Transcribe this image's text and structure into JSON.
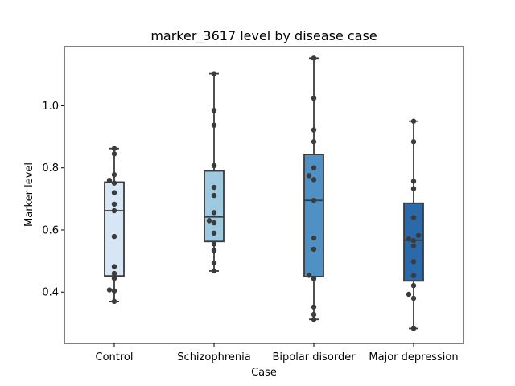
{
  "chart_data": {
    "type": "box",
    "title": "marker_3617 level by disease case",
    "xlabel": "Case",
    "ylabel": "Marker level",
    "ylim": [
      0.235,
      1.19
    ],
    "yticks": [
      0.4,
      0.6,
      0.8,
      1.0
    ],
    "ytick_labels": [
      "0.4",
      "0.6",
      "0.8",
      "1.0"
    ],
    "grid": false,
    "categories": [
      "Control",
      "Schizophrenia",
      "Bipolar disorder",
      "Major depression"
    ],
    "box_colors": [
      "#d6e6f4",
      "#9ecae1",
      "#4f90c5",
      "#2b6aaa"
    ],
    "boxes": [
      {
        "name": "Control",
        "whisker_low": 0.37,
        "q1": 0.452,
        "median": 0.662,
        "q3": 0.754,
        "whisker_high": 0.862
      },
      {
        "name": "Schizophrenia",
        "whisker_low": 0.468,
        "q1": 0.563,
        "median": 0.642,
        "q3": 0.79,
        "whisker_high": 1.103
      },
      {
        "name": "Bipolar disorder",
        "whisker_low": 0.312,
        "q1": 0.45,
        "median": 0.695,
        "q3": 0.843,
        "whisker_high": 1.153
      },
      {
        "name": "Major depression",
        "whisker_low": 0.283,
        "q1": 0.436,
        "median": 0.567,
        "q3": 0.686,
        "whisker_high": 0.95
      }
    ],
    "points": [
      [
        0.862,
        0.845,
        0.778,
        0.76,
        0.751,
        0.72,
        0.683,
        0.662,
        0.579,
        0.482,
        0.46,
        0.444,
        0.407,
        0.404,
        0.37
      ],
      [
        1.103,
        0.985,
        0.937,
        0.807,
        0.737,
        0.711,
        0.656,
        0.63,
        0.623,
        0.59,
        0.555,
        0.534,
        0.494,
        0.468
      ],
      [
        1.153,
        1.024,
        0.922,
        0.884,
        0.8,
        0.775,
        0.762,
        0.695,
        0.574,
        0.538,
        0.454,
        0.443,
        0.352,
        0.328,
        0.312
      ],
      [
        0.95,
        0.884,
        0.757,
        0.733,
        0.64,
        0.582,
        0.571,
        0.566,
        0.549,
        0.498,
        0.453,
        0.421,
        0.393,
        0.38,
        0.283
      ]
    ]
  }
}
